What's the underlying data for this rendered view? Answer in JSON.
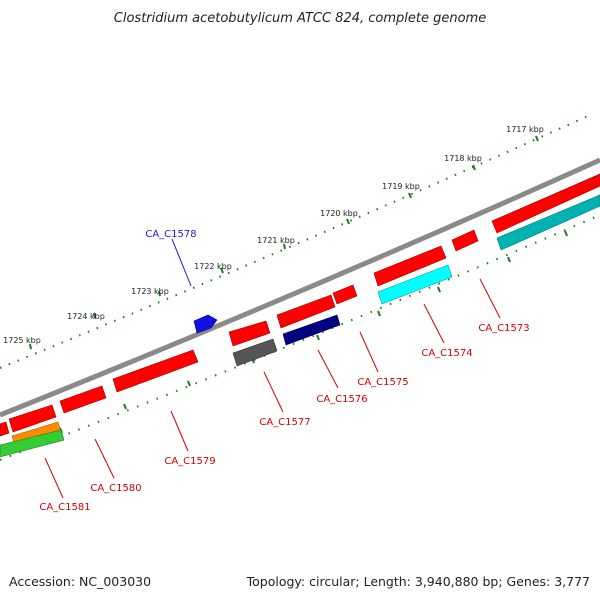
{
  "title": "Clostridium acetobutylicum ATCC 824, complete genome",
  "footer": {
    "accession": "Accession: NC_003030",
    "summary": "Topology: circular; Length: 3,940,880 bp; Genes: 3,777"
  },
  "colors": {
    "backbone": "#7f7f7f",
    "gene_forward": "#ff0000",
    "gene_label": "#dd0000",
    "highlight_label": "#1a1ad8",
    "tick": "#1e7a1e",
    "cyan": "#00ffff",
    "teal": "#00b3b3",
    "navy": "#000080",
    "gray": "#555555",
    "orange": "#ff8c00",
    "green": "#33cc33"
  },
  "kbp_ticks": [
    "1717 kbp",
    "1718 kbp",
    "1719 kbp",
    "1720 kbp",
    "1721 kbp",
    "1722 kbp",
    "1723 kbp",
    "1724 kbp",
    "1725 kbp"
  ],
  "gene_labels": [
    {
      "text": "CA_C1578",
      "highlight": true
    },
    {
      "text": "CA_C1573",
      "highlight": false
    },
    {
      "text": "CA_C1574",
      "highlight": false
    },
    {
      "text": "CA_C1575",
      "highlight": false
    },
    {
      "text": "CA_C1576",
      "highlight": false
    },
    {
      "text": "CA_C1577",
      "highlight": false
    },
    {
      "text": "CA_C1579",
      "highlight": false
    },
    {
      "text": "CA_C1580",
      "highlight": false
    },
    {
      "text": "CA_C1581",
      "highlight": false
    }
  ]
}
